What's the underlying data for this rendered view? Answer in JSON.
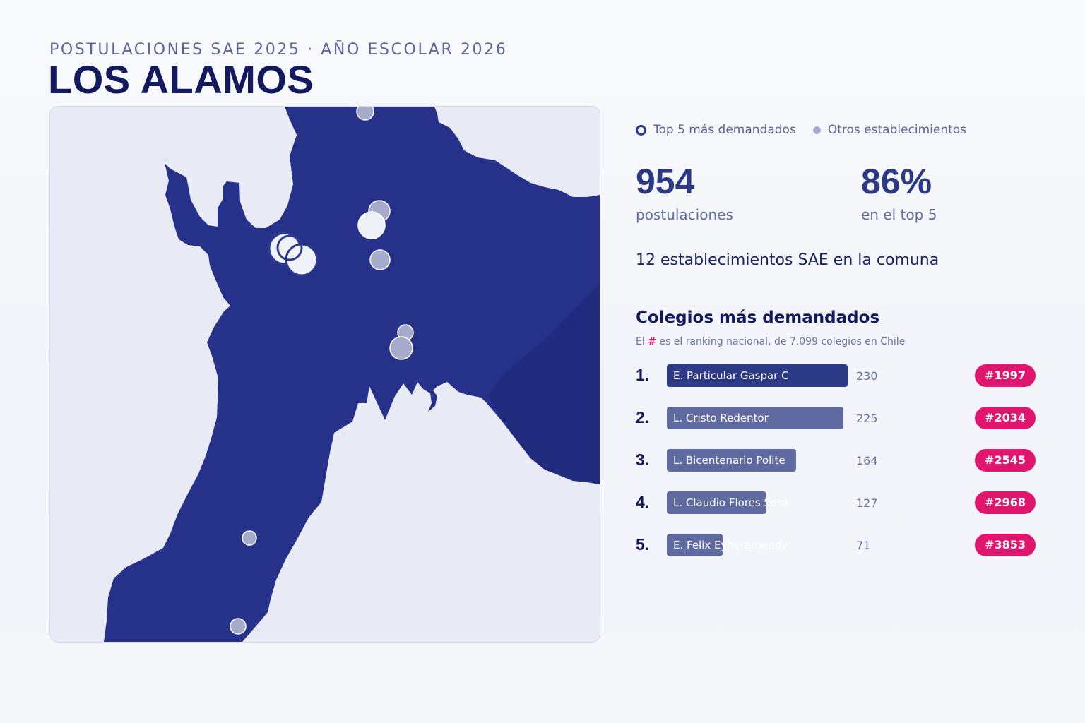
{
  "header": {
    "eyebrow": "POSTULACIONES SAE 2025 · AÑO ESCOLAR 2026",
    "title": "LOS ALAMOS"
  },
  "legend": {
    "top5_label": "Top 5 más demandados",
    "others_label": "Otros establecimientos"
  },
  "kpis": {
    "applications_value": "954",
    "applications_label": "postulaciones",
    "top5_share_value": "86%",
    "top5_share_label": "en el top 5"
  },
  "schools_count_text": "12 establecimientos SAE en la comuna",
  "ranking": {
    "title": "Colegios más demandados",
    "subtitle_before": "El",
    "subtitle_hash": "#",
    "subtitle_after": "es el ranking nacional, de 7.099 colegios en Chile",
    "max_value": 230,
    "items": [
      {
        "rank": "1.",
        "name": "E. Particular Gaspar C",
        "value": 230,
        "value_text": "230",
        "national_rank": "#1997"
      },
      {
        "rank": "2.",
        "name": "L. Cristo Redentor",
        "value": 225,
        "value_text": "225",
        "national_rank": "#2034"
      },
      {
        "rank": "3.",
        "name": "L. Bicentenario Polite",
        "value": 164,
        "value_text": "164",
        "national_rank": "#2545"
      },
      {
        "rank": "4.",
        "name": "L. Claudio Flores Soto",
        "value": 127,
        "value_text": "127",
        "national_rank": "#2968"
      },
      {
        "rank": "5.",
        "name": "E. Felix Eyheramendy",
        "value": 71,
        "value_text": "71",
        "national_rank": "#3853"
      }
    ]
  },
  "colors": {
    "land": "#26318a",
    "water": "#e8ebf5",
    "accent": "#2c3985",
    "badge": "#e0156e",
    "other_marker": "#a6abcc"
  }
}
